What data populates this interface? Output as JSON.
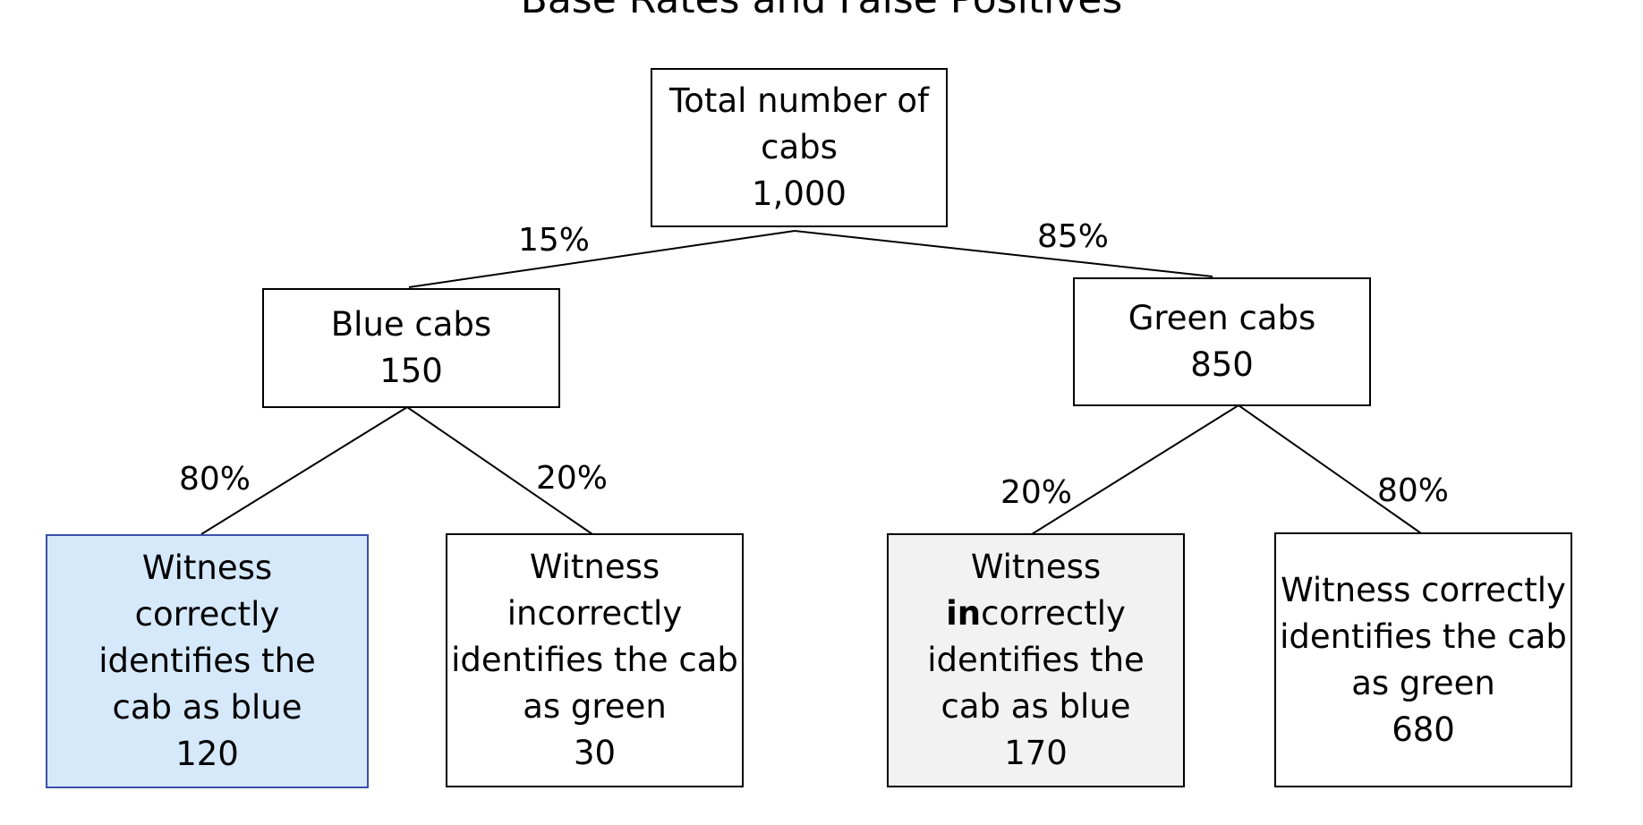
{
  "title": "Base Rates and False Positives",
  "root": {
    "lines": [
      "Total number of",
      "cabs"
    ],
    "value": "1,000"
  },
  "level1": {
    "blue": {
      "lines": [
        "Blue cabs"
      ],
      "value": "150",
      "pct": "15%"
    },
    "green": {
      "lines": [
        "Green cabs"
      ],
      "value": "850",
      "pct": "85%"
    }
  },
  "leaves": {
    "blue_correct": {
      "lines": [
        "Witness",
        "correctly",
        "identifies the",
        "cab as blue"
      ],
      "value": "120",
      "pct": "80%",
      "fill": "#d5e9fb"
    },
    "blue_incorrect": {
      "lines": [
        "Witness",
        "incorrectly",
        "identifies the cab",
        "as green"
      ],
      "value": "30",
      "pct": "20%"
    },
    "green_incorrect": {
      "line1": "Witness",
      "line2_bold": "in",
      "line2_rest": "correctly",
      "lines_rest": [
        "identifies the",
        "cab as blue"
      ],
      "value": "170",
      "pct": "20%",
      "fill": "#f2f2f2"
    },
    "green_correct": {
      "lines": [
        "Witness correctly",
        "identifies the cab",
        "as green"
      ],
      "value": "680",
      "pct": "80%"
    }
  }
}
